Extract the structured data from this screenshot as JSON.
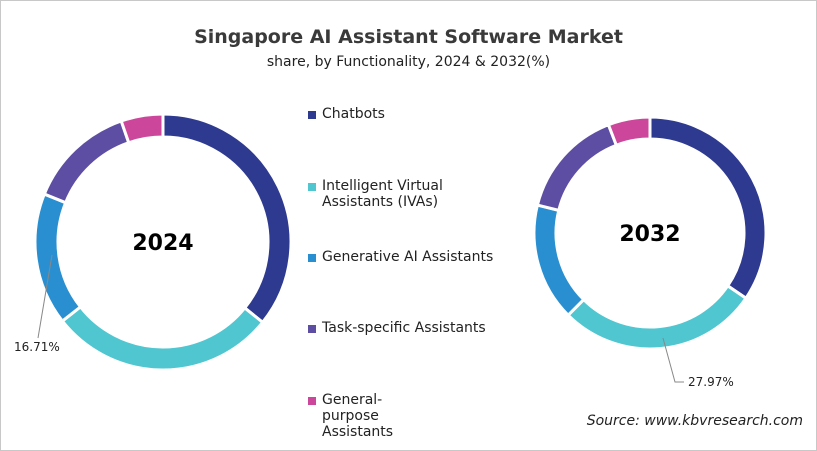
{
  "chart_data": [
    {
      "type": "donut",
      "title": "Singapore AI Assistant Software Market",
      "subtitle": "share, by Functionality, 2024 & 2032(%)",
      "center_label": "2024",
      "categories": [
        "Chatbots",
        "Intelligent Virtual Assistants (IVAs)",
        "Generative AI Assistants",
        "Task-specific Assistants",
        "General-purpose Assistants"
      ],
      "values": [
        35.8,
        28.6,
        16.71,
        13.6,
        5.29
      ],
      "data_labels": [
        {
          "category": "Generative AI Assistants",
          "text": "16.71%"
        }
      ]
    },
    {
      "type": "donut",
      "center_label": "2032",
      "categories": [
        "Chatbots",
        "Intelligent Virtual Assistants (IVAs)",
        "Generative AI Assistants",
        "Task-specific Assistants",
        "General-purpose Assistants"
      ],
      "values": [
        34.5,
        27.97,
        16.4,
        15.3,
        5.83
      ],
      "data_labels": [
        {
          "category": "Intelligent Virtual Assistants (IVAs)",
          "text": "27.97%"
        }
      ]
    }
  ],
  "legend": {
    "placement": "center",
    "items": [
      {
        "label": "Chatbots",
        "color": "#2e3a8f"
      },
      {
        "label": "Intelligent Virtual Assistants (IVAs)",
        "color": "#4fc6d0"
      },
      {
        "label": "Generative AI Assistants",
        "color": "#2a8fd0"
      },
      {
        "label": "Task-specific Assistants",
        "color": "#5e4ea3"
      },
      {
        "label": "General-purpose Assistants",
        "color": "#cc479c"
      }
    ]
  },
  "source": "Source: www.kbvresearch.com"
}
